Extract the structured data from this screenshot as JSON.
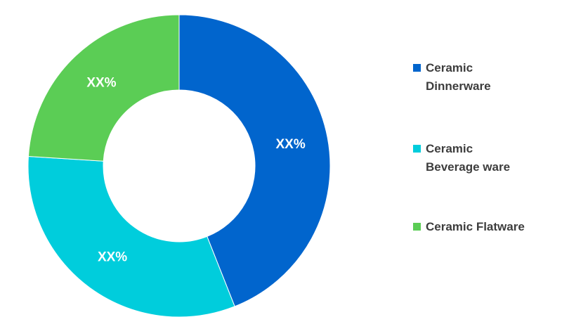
{
  "colors": {
    "dinnerware": "#0165cd",
    "beverage": "#00cddc",
    "flatware": "#5bcd55"
  },
  "chart_data": {
    "type": "pie",
    "title": "",
    "categories": [
      "Ceramic Dinnerware",
      "Ceramic Beverage ware",
      "Ceramic Flatware"
    ],
    "values": [
      44,
      32,
      24
    ],
    "data_labels": [
      "XX%",
      "XX%",
      "XX%"
    ],
    "donut": true,
    "legend_placement": "right"
  },
  "legend": {
    "items": [
      {
        "label_line1": "Ceramic",
        "label_line2": "Dinnerware",
        "color": "#0165cd"
      },
      {
        "label_line1": "Ceramic",
        "label_line2": "Beverage ware",
        "color": "#00cddc"
      },
      {
        "label_line1": "Ceramic Flatware",
        "label_line2": "",
        "color": "#5bcd55"
      }
    ]
  }
}
